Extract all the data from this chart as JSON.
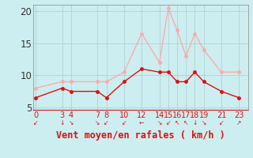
{
  "hours": [
    0,
    3,
    4,
    7,
    8,
    10,
    12,
    14,
    15,
    16,
    17,
    18,
    19,
    21,
    23
  ],
  "wind_mean": [
    6.5,
    8.0,
    7.5,
    7.5,
    6.5,
    9.0,
    11.0,
    10.5,
    10.5,
    9.0,
    9.0,
    10.5,
    9.0,
    7.5,
    6.5
  ],
  "wind_gust": [
    8.0,
    9.0,
    9.0,
    9.0,
    9.0,
    10.5,
    16.5,
    12.0,
    20.5,
    17.0,
    13.0,
    16.5,
    14.0,
    10.5,
    10.5
  ],
  "mean_color": "#dd1111",
  "gust_color": "#ffaaaa",
  "bg_color": "#cceef0",
  "grid_color": "#aacccc",
  "spine_color": "#888888",
  "red_line_color": "#dd1111",
  "xlabel": "Vent moyen/en rafales ( km/h )",
  "xlabel_color": "#dd1111",
  "tick_label_color": "#dd1111",
  "ytick_label_color": "#333333",
  "ylim": [
    4.5,
    21.0
  ],
  "yticks": [
    5,
    10,
    15,
    20
  ],
  "xticks": [
    0,
    3,
    4,
    7,
    8,
    10,
    12,
    14,
    15,
    16,
    17,
    18,
    19,
    21,
    23
  ],
  "xlim": [
    -0.3,
    24.0
  ],
  "marker_size": 2.5,
  "line_width": 1.0,
  "font_size": 8.5
}
